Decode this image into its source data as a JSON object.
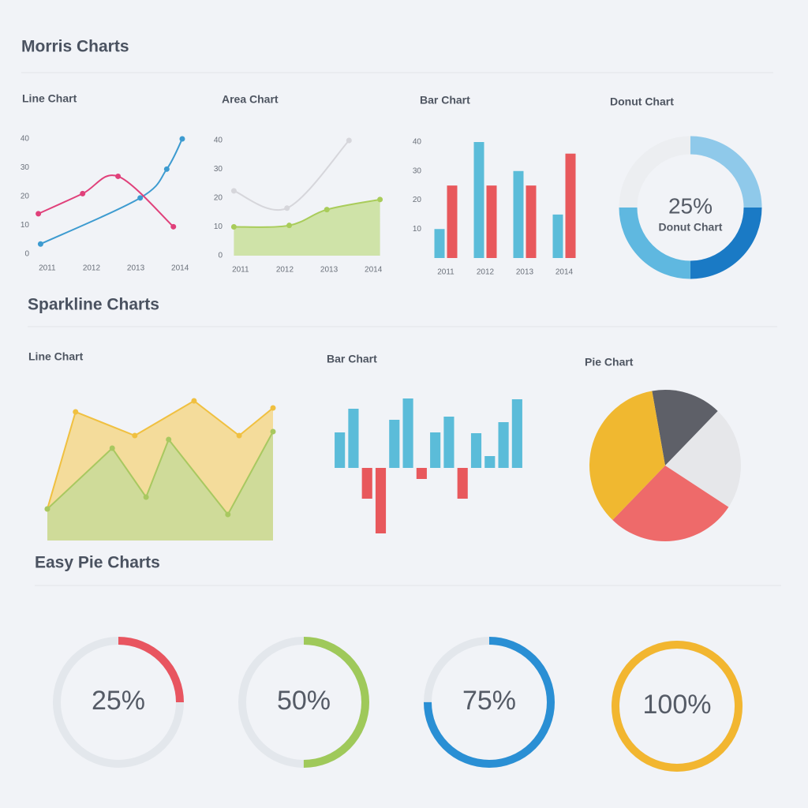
{
  "sections": [
    "Morris Charts",
    "Sparkline Charts",
    "Easy Pie Charts"
  ],
  "chart_data": [
    {
      "type": "line",
      "title": "Line Chart",
      "smooth": true,
      "xlim": [
        2010.7,
        2014.3
      ],
      "xticks": [
        2011,
        2012,
        2013,
        2014
      ],
      "ylim": [
        0,
        40
      ],
      "yticks": [
        0,
        10,
        20,
        30,
        40
      ],
      "series": [
        {
          "color": "#3d9bd0",
          "fill": false,
          "x": [
            2010.85,
            2013.1,
            2013.7,
            2014.05
          ],
          "values": [
            3.5,
            19.5,
            29.5,
            40
          ]
        },
        {
          "color": "#e0407a",
          "fill": false,
          "x": [
            2010.8,
            2011.8,
            2012.6,
            2013.85
          ],
          "values": [
            14,
            21,
            27,
            9.5
          ]
        }
      ]
    },
    {
      "type": "area",
      "title": "Area Chart",
      "smooth": true,
      "xlim": [
        2010.7,
        2014.3
      ],
      "xticks": [
        2011,
        2012,
        2013,
        2014
      ],
      "ylim": [
        0,
        40
      ],
      "yticks": [
        0,
        10,
        20,
        30,
        40
      ],
      "series": [
        {
          "color": "#d6d6db",
          "fill": false,
          "x": [
            2010.85,
            2012.05,
            2013.45
          ],
          "values": [
            22.5,
            16.5,
            40
          ]
        },
        {
          "color": "#a9cc5a",
          "fill": true,
          "x": [
            2010.85,
            2012.1,
            2012.95,
            2014.15
          ],
          "values": [
            10,
            10.5,
            16,
            19.5
          ]
        }
      ]
    },
    {
      "type": "bar",
      "title": "Bar Chart",
      "categories": [
        "2011",
        "2012",
        "2013",
        "2014"
      ],
      "ylim": [
        0,
        40
      ],
      "yticks": [
        10,
        20,
        30,
        40
      ],
      "series": [
        {
          "color": "#5bbcd9",
          "values": [
            10,
            40,
            30,
            15
          ]
        },
        {
          "color": "#e8585c",
          "values": [
            25,
            25,
            25,
            36
          ]
        }
      ]
    },
    {
      "type": "donut",
      "title": "Donut Chart",
      "center_label": "25%",
      "center_caption": "Donut Chart",
      "values": [
        25,
        25,
        25,
        25
      ],
      "colors": [
        "#8fc9ea",
        "#1a7ac5",
        "#5fb8e0",
        "#eceef1"
      ]
    },
    {
      "type": "area",
      "title": "Line Chart",
      "smooth": false,
      "xlim": [
        0,
        8
      ],
      "ylim": [
        0,
        190
      ],
      "series": [
        {
          "color": "#f0c040",
          "fill": true,
          "x": [
            0,
            1,
            3.1,
            5.2,
            6.8,
            8
          ],
          "values": [
            40,
            163,
            133,
            177,
            133,
            168
          ]
        },
        {
          "color": "#a8c860",
          "fill": true,
          "x": [
            0,
            2.3,
            3.5,
            4.3,
            6.4,
            8
          ],
          "values": [
            40,
            117,
            55,
            128,
            33,
            138
          ]
        }
      ]
    },
    {
      "type": "bar",
      "title": "Bar Chart",
      "ylim": [
        -90,
        90
      ],
      "color": "#5bbcd9",
      "negative_color": "#e8585c",
      "values": [
        45,
        75,
        -39,
        -83,
        61,
        88,
        -14,
        45,
        65,
        -39,
        44,
        15,
        58,
        87
      ]
    },
    {
      "type": "pie",
      "title": "Pie Chart",
      "values": [
        15,
        22,
        28,
        35
      ],
      "colors": [
        "#5e6068",
        "#e6e7ea",
        "#ee6a6a",
        "#f0b830"
      ]
    },
    {
      "type": "gauge",
      "ylim": [
        0,
        100
      ],
      "values": [
        25,
        50,
        75,
        100
      ],
      "value_labels": [
        "25%",
        "50%",
        "75%",
        "100%"
      ],
      "colors": [
        "#e85560",
        "#9fc95a",
        "#2a8fd4",
        "#f2b630"
      ]
    }
  ]
}
